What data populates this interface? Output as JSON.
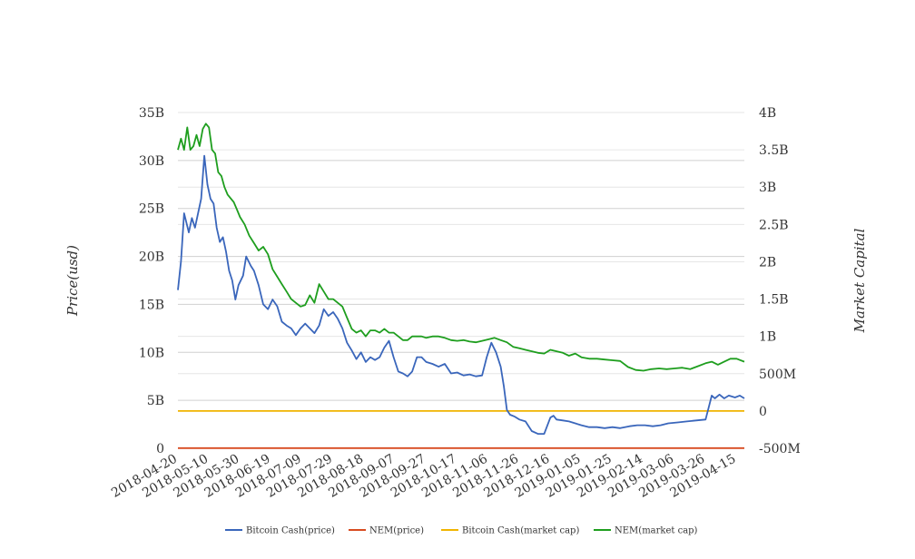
{
  "chart_data": {
    "type": "line",
    "ylabel_left": "Price(usd)",
    "ylabel_right": "Market Capital",
    "x_range": [
      "2018-04-20",
      "2019-04-20"
    ],
    "x_tick_labels": [
      "2018-04-20",
      "2018-05-10",
      "2018-05-30",
      "2018-06-19",
      "2018-07-09",
      "2018-07-29",
      "2018-08-18",
      "2018-09-07",
      "2018-09-27",
      "2018-10-17",
      "2018-11-06",
      "2018-11-26",
      "2018-12-16",
      "2019-01-05",
      "2019-01-25",
      "2019-02-14",
      "2019-03-06",
      "2019-03-26",
      "2019-04-15"
    ],
    "y_left": {
      "min": 0,
      "max": 35,
      "unit": "B",
      "ticks": [
        0,
        5,
        10,
        15,
        20,
        25,
        30,
        35
      ],
      "tick_labels": [
        "0",
        "5B",
        "10B",
        "15B",
        "20B",
        "25B",
        "30B",
        "35B"
      ]
    },
    "y_right": {
      "min": -500,
      "max": 4000,
      "unit": "M",
      "ticks": [
        -500,
        0,
        500,
        1000,
        1500,
        2000,
        2500,
        3000,
        3500,
        4000
      ],
      "tick_labels": [
        "-500M",
        "0",
        "500M",
        "1B",
        "1.5B",
        "2B",
        "2.5B",
        "3B",
        "3.5B",
        "4B"
      ]
    },
    "grid": true,
    "legend_position": "bottom",
    "series": [
      {
        "name": "Bitcoin Cash(price)",
        "axis": "left",
        "color": "#3a66bb",
        "x": [
          "2018-04-20",
          "2018-04-22",
          "2018-04-24",
          "2018-04-27",
          "2018-04-29",
          "2018-05-01",
          "2018-05-03",
          "2018-05-05",
          "2018-05-07",
          "2018-05-09",
          "2018-05-11",
          "2018-05-13",
          "2018-05-15",
          "2018-05-17",
          "2018-05-19",
          "2018-05-21",
          "2018-05-23",
          "2018-05-25",
          "2018-05-27",
          "2018-05-29",
          "2018-06-01",
          "2018-06-03",
          "2018-06-06",
          "2018-06-08",
          "2018-06-11",
          "2018-06-14",
          "2018-06-17",
          "2018-06-20",
          "2018-06-23",
          "2018-06-26",
          "2018-06-29",
          "2018-07-02",
          "2018-07-05",
          "2018-07-08",
          "2018-07-11",
          "2018-07-14",
          "2018-07-17",
          "2018-07-20",
          "2018-07-23",
          "2018-07-26",
          "2018-07-29",
          "2018-08-01",
          "2018-08-04",
          "2018-08-07",
          "2018-08-10",
          "2018-08-13",
          "2018-08-16",
          "2018-08-19",
          "2018-08-22",
          "2018-08-25",
          "2018-08-28",
          "2018-08-31",
          "2018-09-03",
          "2018-09-06",
          "2018-09-09",
          "2018-09-12",
          "2018-09-15",
          "2018-09-18",
          "2018-09-21",
          "2018-09-24",
          "2018-09-27",
          "2018-10-01",
          "2018-10-05",
          "2018-10-09",
          "2018-10-13",
          "2018-10-17",
          "2018-10-21",
          "2018-10-25",
          "2018-10-29",
          "2018-11-02",
          "2018-11-05",
          "2018-11-08",
          "2018-11-11",
          "2018-11-14",
          "2018-11-16",
          "2018-11-18",
          "2018-11-20",
          "2018-11-23",
          "2018-11-26",
          "2018-11-30",
          "2018-12-04",
          "2018-12-08",
          "2018-12-12",
          "2018-12-16",
          "2018-12-18",
          "2018-12-20",
          "2018-12-24",
          "2018-12-28",
          "2019-01-01",
          "2019-01-05",
          "2019-01-10",
          "2019-01-15",
          "2019-01-20",
          "2019-01-25",
          "2019-01-30",
          "2019-02-05",
          "2019-02-10",
          "2019-02-15",
          "2019-02-20",
          "2019-02-25",
          "2019-03-02",
          "2019-03-08",
          "2019-03-14",
          "2019-03-20",
          "2019-03-26",
          "2019-03-30",
          "2019-04-01",
          "2019-04-04",
          "2019-04-07",
          "2019-04-10",
          "2019-04-14",
          "2019-04-17",
          "2019-04-20"
        ],
        "values": [
          16.5,
          19.5,
          24.5,
          22.5,
          24.0,
          23.0,
          24.5,
          26.0,
          30.5,
          27.5,
          26.0,
          25.5,
          23.0,
          21.5,
          22.0,
          20.5,
          18.5,
          17.5,
          15.5,
          17.0,
          18.0,
          20.0,
          19.0,
          18.5,
          17.0,
          15.0,
          14.5,
          15.5,
          14.8,
          13.2,
          12.8,
          12.5,
          11.8,
          12.5,
          13.0,
          12.5,
          12.0,
          12.8,
          14.5,
          13.8,
          14.2,
          13.5,
          12.5,
          11.0,
          10.2,
          9.3,
          10.0,
          9.0,
          9.5,
          9.2,
          9.5,
          10.5,
          11.2,
          9.5,
          8.0,
          7.8,
          7.5,
          8.0,
          9.5,
          9.5,
          9.0,
          8.8,
          8.5,
          8.8,
          7.8,
          7.9,
          7.6,
          7.7,
          7.5,
          7.6,
          9.5,
          11.0,
          10.0,
          8.5,
          6.5,
          4.0,
          3.5,
          3.3,
          3.0,
          2.8,
          1.8,
          1.5,
          1.5,
          3.2,
          3.4,
          3.0,
          2.9,
          2.8,
          2.6,
          2.4,
          2.2,
          2.2,
          2.1,
          2.2,
          2.1,
          2.3,
          2.4,
          2.4,
          2.3,
          2.4,
          2.6,
          2.7,
          2.8,
          2.9,
          3.0,
          5.5,
          5.2,
          5.6,
          5.2,
          5.5,
          5.3,
          5.5,
          5.2
        ]
      },
      {
        "name": "NEM(price)",
        "axis": "left",
        "color": "#d84b20",
        "x": [
          "2018-04-20",
          "2019-04-20"
        ],
        "values": [
          0.02,
          0.02
        ]
      },
      {
        "name": "Bitcoin Cash(market cap)",
        "axis": "right",
        "color": "#f0b400",
        "x": [
          "2018-04-20",
          "2019-04-20"
        ],
        "values": [
          0,
          0
        ]
      },
      {
        "name": "NEM(market cap)",
        "axis": "right",
        "color": "#1e9e1e",
        "x": [
          "2018-04-20",
          "2018-04-22",
          "2018-04-24",
          "2018-04-26",
          "2018-04-28",
          "2018-04-30",
          "2018-05-02",
          "2018-05-04",
          "2018-05-06",
          "2018-05-08",
          "2018-05-10",
          "2018-05-12",
          "2018-05-14",
          "2018-05-16",
          "2018-05-18",
          "2018-05-20",
          "2018-05-22",
          "2018-05-24",
          "2018-05-26",
          "2018-05-28",
          "2018-05-30",
          "2018-06-02",
          "2018-06-05",
          "2018-06-08",
          "2018-06-11",
          "2018-06-14",
          "2018-06-17",
          "2018-06-20",
          "2018-06-23",
          "2018-06-26",
          "2018-06-29",
          "2018-07-02",
          "2018-07-05",
          "2018-07-08",
          "2018-07-11",
          "2018-07-14",
          "2018-07-17",
          "2018-07-20",
          "2018-07-23",
          "2018-07-26",
          "2018-07-29",
          "2018-08-01",
          "2018-08-04",
          "2018-08-07",
          "2018-08-10",
          "2018-08-13",
          "2018-08-16",
          "2018-08-19",
          "2018-08-22",
          "2018-08-25",
          "2018-08-28",
          "2018-08-31",
          "2018-09-03",
          "2018-09-06",
          "2018-09-09",
          "2018-09-12",
          "2018-09-15",
          "2018-09-18",
          "2018-09-21",
          "2018-09-24",
          "2018-09-27",
          "2018-10-01",
          "2018-10-05",
          "2018-10-09",
          "2018-10-13",
          "2018-10-17",
          "2018-10-21",
          "2018-10-25",
          "2018-10-29",
          "2018-11-02",
          "2018-11-06",
          "2018-11-10",
          "2018-11-14",
          "2018-11-18",
          "2018-11-22",
          "2018-11-26",
          "2018-11-30",
          "2018-12-04",
          "2018-12-08",
          "2018-12-12",
          "2018-12-16",
          "2018-12-20",
          "2018-12-24",
          "2018-12-28",
          "2019-01-01",
          "2019-01-05",
          "2019-01-10",
          "2019-01-15",
          "2019-01-20",
          "2019-01-25",
          "2019-01-30",
          "2019-02-04",
          "2019-02-09",
          "2019-02-14",
          "2019-02-19",
          "2019-02-24",
          "2019-03-01",
          "2019-03-06",
          "2019-03-11",
          "2019-03-16",
          "2019-03-21",
          "2019-03-26",
          "2019-03-30",
          "2019-04-03",
          "2019-04-07",
          "2019-04-11",
          "2019-04-15",
          "2019-04-20"
        ],
        "values": [
          3500,
          3650,
          3500,
          3800,
          3500,
          3550,
          3700,
          3550,
          3780,
          3850,
          3800,
          3500,
          3450,
          3200,
          3150,
          3000,
          2900,
          2850,
          2800,
          2700,
          2600,
          2500,
          2350,
          2250,
          2150,
          2200,
          2100,
          1900,
          1800,
          1700,
          1600,
          1500,
          1450,
          1400,
          1420,
          1550,
          1450,
          1700,
          1600,
          1500,
          1500,
          1450,
          1400,
          1250,
          1100,
          1050,
          1080,
          1000,
          1080,
          1080,
          1050,
          1100,
          1050,
          1050,
          1000,
          950,
          950,
          1000,
          1000,
          1000,
          980,
          1000,
          1000,
          980,
          950,
          940,
          950,
          930,
          920,
          940,
          960,
          980,
          950,
          920,
          860,
          840,
          820,
          800,
          780,
          770,
          820,
          800,
          780,
          740,
          770,
          720,
          700,
          700,
          690,
          680,
          670,
          590,
          550,
          540,
          560,
          570,
          560,
          570,
          580,
          560,
          600,
          640,
          660,
          620,
          660,
          700,
          700,
          660
        ]
      }
    ]
  }
}
